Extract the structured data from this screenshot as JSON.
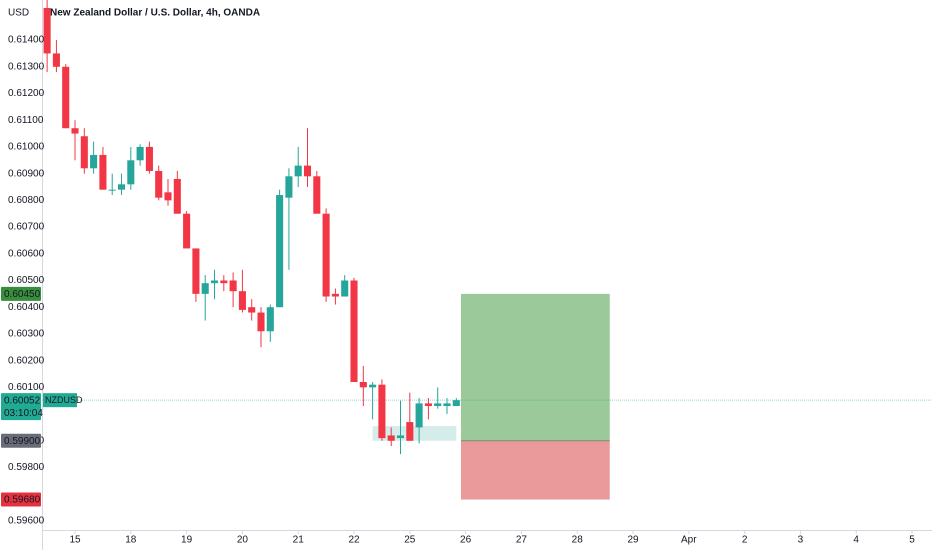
{
  "chart_data": {
    "type": "candlestick",
    "title": "New Zealand Dollar / U.S. Dollar, 4h, OANDA",
    "y_axis_label": "USD",
    "x": [
      -3,
      -2,
      -1,
      0,
      1,
      2,
      3,
      4,
      5,
      6,
      7,
      8,
      9,
      10,
      11,
      12,
      13,
      14,
      15,
      16,
      17,
      18,
      19,
      20,
      21,
      22,
      23,
      24,
      25,
      26,
      27,
      28,
      29,
      30,
      31,
      32,
      33,
      34,
      35,
      36,
      37,
      38,
      39,
      40,
      41
    ],
    "open": [
      0.6152,
      0.6135,
      0.613,
      0.6107,
      0.6104,
      0.6092,
      0.6097,
      0.6084,
      0.6084,
      0.6086,
      0.6095,
      0.61,
      0.6091,
      0.6083,
      0.6088,
      0.6075,
      0.6062,
      0.6045,
      0.6049,
      0.605,
      0.605,
      0.6046,
      0.604,
      0.6038,
      0.6031,
      0.604,
      0.6081,
      0.6089,
      0.6093,
      0.6089,
      0.6075,
      0.6045,
      0.6044,
      0.605,
      0.6012,
      0.601,
      0.6011,
      0.5992,
      0.5991,
      0.5997,
      0.5995,
      0.6004,
      0.6003,
      0.6003,
      0.6003
    ],
    "high": [
      0.6155,
      0.614,
      0.6131,
      0.611,
      0.6107,
      0.6102,
      0.61,
      0.609,
      0.609,
      0.61,
      0.6101,
      0.6102,
      0.6093,
      0.6088,
      0.6091,
      0.6076,
      0.6062,
      0.6052,
      0.6054,
      0.6052,
      0.6053,
      0.6054,
      0.6043,
      0.604,
      0.6041,
      0.6084,
      0.6092,
      0.61,
      0.6107,
      0.6091,
      0.6077,
      0.6047,
      0.6052,
      0.6051,
      0.6018,
      0.6012,
      0.6013,
      0.5995,
      0.6005,
      0.6008,
      0.6006,
      0.6006,
      0.601,
      0.6006,
      0.6006
    ],
    "low": [
      0.6128,
      0.6128,
      0.6107,
      0.6095,
      0.609,
      0.609,
      0.6084,
      0.6082,
      0.6082,
      0.6084,
      0.6093,
      0.609,
      0.608,
      0.6078,
      0.6075,
      0.6062,
      0.6042,
      0.6035,
      0.6043,
      0.6046,
      0.604,
      0.6038,
      0.6035,
      0.6025,
      0.6027,
      0.604,
      0.6054,
      0.6085,
      0.6085,
      0.6075,
      0.6042,
      0.6041,
      0.6044,
      0.6012,
      0.6003,
      0.5998,
      0.599,
      0.5988,
      0.5985,
      0.599,
      0.5989,
      0.5998,
      0.6002,
      0.6,
      0.6003
    ],
    "close": [
      0.6135,
      0.613,
      0.6107,
      0.6105,
      0.6092,
      0.6097,
      0.6084,
      0.6084,
      0.6086,
      0.6095,
      0.61,
      0.6091,
      0.6081,
      0.608,
      0.6075,
      0.6062,
      0.6045,
      0.6049,
      0.605,
      0.6049,
      0.6046,
      0.6039,
      0.6038,
      0.6031,
      0.604,
      0.6082,
      0.6089,
      0.6093,
      0.6089,
      0.6075,
      0.6044,
      0.6044,
      0.605,
      0.6012,
      0.601,
      0.6011,
      0.5991,
      0.599,
      0.5992,
      0.599,
      0.6004,
      0.6003,
      0.6004,
      0.6004,
      0.60052
    ],
    "up_color": "#26a69a",
    "down_color": "#f23645",
    "xlim": [
      -3.55,
      92.15
    ],
    "xticks": [
      {
        "value": 0,
        "label": "15"
      },
      {
        "value": 6,
        "label": "18"
      },
      {
        "value": 12,
        "label": "19"
      },
      {
        "value": 18,
        "label": "20"
      },
      {
        "value": 24,
        "label": "21"
      },
      {
        "value": 30,
        "label": "22"
      },
      {
        "value": 36,
        "label": "25"
      },
      {
        "value": 42,
        "label": "26"
      },
      {
        "value": 48,
        "label": "27"
      },
      {
        "value": 54,
        "label": "28"
      },
      {
        "value": 60,
        "label": "29"
      },
      {
        "value": 66,
        "label": "Apr"
      },
      {
        "value": 72,
        "label": "2"
      },
      {
        "value": 78,
        "label": "3"
      },
      {
        "value": 84,
        "label": "4"
      },
      {
        "value": 90,
        "label": "5"
      }
    ],
    "ylim": [
      0.59566,
      0.6155
    ],
    "yticks": [
      {
        "value": 0.614,
        "label": "0.61400"
      },
      {
        "value": 0.613,
        "label": "0.61300"
      },
      {
        "value": 0.612,
        "label": "0.61200"
      },
      {
        "value": 0.611,
        "label": "0.61100"
      },
      {
        "value": 0.61,
        "label": "0.61000"
      },
      {
        "value": 0.609,
        "label": "0.60900"
      },
      {
        "value": 0.608,
        "label": "0.60800"
      },
      {
        "value": 0.607,
        "label": "0.60700"
      },
      {
        "value": 0.606,
        "label": "0.60600"
      },
      {
        "value": 0.605,
        "label": "0.60500"
      },
      {
        "value": 0.604,
        "label": "0.60400"
      },
      {
        "value": 0.603,
        "label": "0.60300"
      },
      {
        "value": 0.602,
        "label": "0.60200"
      },
      {
        "value": 0.601,
        "label": "0.60100"
      },
      {
        "value": 0.599,
        "label": "0.59900"
      },
      {
        "value": 0.598,
        "label": "0.59800"
      },
      {
        "value": 0.596,
        "label": "0.59600"
      }
    ],
    "zone": {
      "top": 0.59955,
      "bottom": 0.599,
      "start": 32,
      "end": 41,
      "color": "#26a69a"
    },
    "position": {
      "start": 42,
      "end": 58,
      "target": {
        "value": 0.6045,
        "label": "0.60450",
        "color": "#388e3c"
      },
      "entry": {
        "value": 0.599,
        "label": "0.59900",
        "color": "#6a6d78"
      },
      "stop": {
        "value": 0.5968,
        "label": "0.59680",
        "color": "#e5323f"
      },
      "profit_color": "#9bc99a",
      "loss_color": "#eb9a9c"
    },
    "last_price": {
      "value": 0.60052,
      "label": "0.60052",
      "symbol": "NZDUSD",
      "countdown": "03:10:04",
      "color": "#22ab94"
    }
  }
}
